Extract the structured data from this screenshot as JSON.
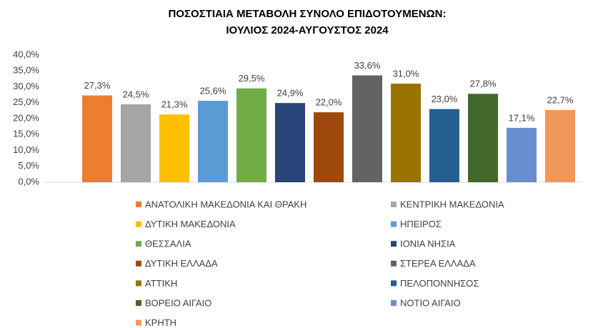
{
  "chart_data": {
    "type": "bar",
    "title": "ΠΟΣΟΣΤΙΑΙΑ ΜΕΤΑΒΟΛΗ ΣΥΝΟΛΟ ΕΠΙΔΟΤΟΥΜΕΝΩΝ:",
    "subtitle": "ΙΟΥΛΙΟΣ 2024-ΑΥΓΟΥΣΤΟΣ 2024",
    "categories": [
      "ΑΝΑΤΟΛΙΚΗ ΜΑΚΕΔΟΝΙΑ ΚΑΙ ΘΡΑΚΗ",
      "ΚΕΝΤΡΙΚΗ ΜΑΚΕΔΟΝΙΑ",
      "ΔΥΤΙΚΗ ΜΑΚΕΔΟΝΙΑ",
      "ΗΠΕΙΡΟΣ",
      "ΘΕΣΣΑΛΙΑ",
      "ΙΟΝΙΑ ΝΗΣΙΑ",
      "ΔΥΤΙΚΗ ΕΛΛΑΔΑ",
      "ΣΤΕΡΕΑ ΕΛΛΑΔΑ",
      "ΑΤΤΙΚΗ",
      "ΠΕΛΟΠΟΝΝΗΣΟΣ",
      "ΒΟΡΕΙΟ ΑΙΓΑΙΟ",
      "ΝΟΤΙΟ ΑΙΓΑΙΟ",
      "ΚΡΗΤΗ"
    ],
    "values": [
      27.3,
      24.5,
      21.3,
      25.6,
      29.5,
      24.9,
      22.0,
      33.6,
      31.0,
      23.0,
      27.8,
      17.1,
      22.7
    ],
    "value_labels": [
      "27,3%",
      "24,5%",
      "21,3%",
      "25,6%",
      "29,5%",
      "24,9%",
      "22,0%",
      "33,6%",
      "31,0%",
      "23,0%",
      "27,8%",
      "17,1%",
      "22,7%"
    ],
    "colors": [
      "#ED7D31",
      "#A5A5A5",
      "#FFC000",
      "#5B9BD5",
      "#70AD47",
      "#264478",
      "#9E480E",
      "#636363",
      "#997300",
      "#255E91",
      "#43682B",
      "#698ED0",
      "#F1975A"
    ],
    "ylim": [
      0,
      40
    ],
    "yticks": [
      {
        "value": 0,
        "label": "0,0%"
      },
      {
        "value": 5,
        "label": "5,0%"
      },
      {
        "value": 10,
        "label": "10,0%"
      },
      {
        "value": 15,
        "label": "15,0%"
      },
      {
        "value": 20,
        "label": "20,0%"
      },
      {
        "value": 25,
        "label": "25,0%"
      },
      {
        "value": 30,
        "label": "30,0%"
      },
      {
        "value": 35,
        "label": "35,0%"
      },
      {
        "value": 40,
        "label": "40,0%"
      }
    ],
    "grid": false,
    "legend": "bottom"
  }
}
